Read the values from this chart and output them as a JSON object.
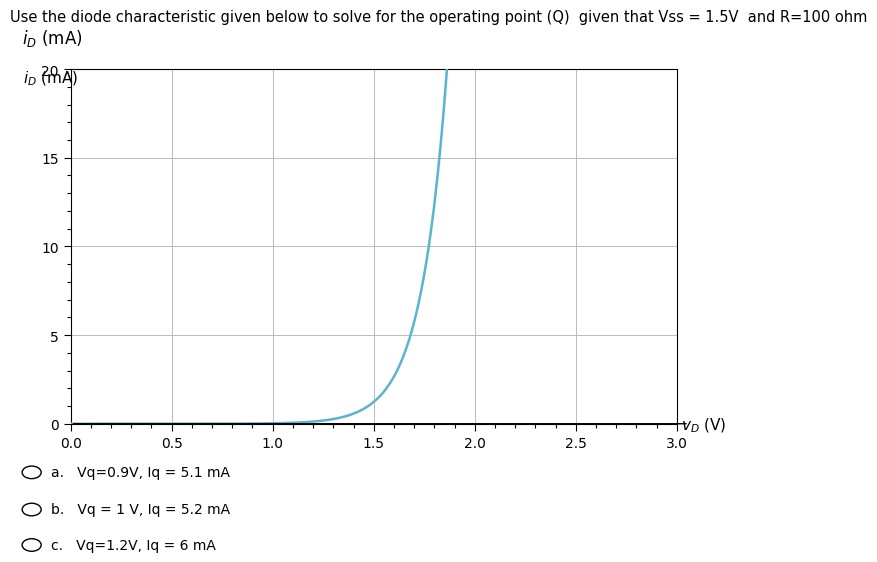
{
  "title": "Use the diode characteristic given below to solve for the operating point (Q)  given that Vss = 1.5V  and R=100 ohm",
  "ylabel_top": "$i_D$ (mA)",
  "xlabel_right": "$v_D$ (V)",
  "xlim": [
    0,
    3.0
  ],
  "ylim": [
    0,
    20
  ],
  "xticks": [
    0,
    0.5,
    1.0,
    1.5,
    2.0,
    2.5,
    3.0
  ],
  "yticks": [
    0,
    5,
    10,
    15,
    20
  ],
  "curve_color": "#5ab4d0",
  "background_color": "#ffffff",
  "grid_color": "#bbbbbb",
  "choices": [
    "a.   Vq=0.9V, Iq = 5.1 mA",
    "b.   Vq = 1 V, Iq = 5.2 mA",
    "c.   Vq=1.2V, Iq = 6 mA"
  ],
  "diode_VT": 0.13,
  "diode_Is_mA": 1.2e-05,
  "title_fontsize": 10.5,
  "axis_label_fontsize": 12,
  "tick_fontsize": 10
}
